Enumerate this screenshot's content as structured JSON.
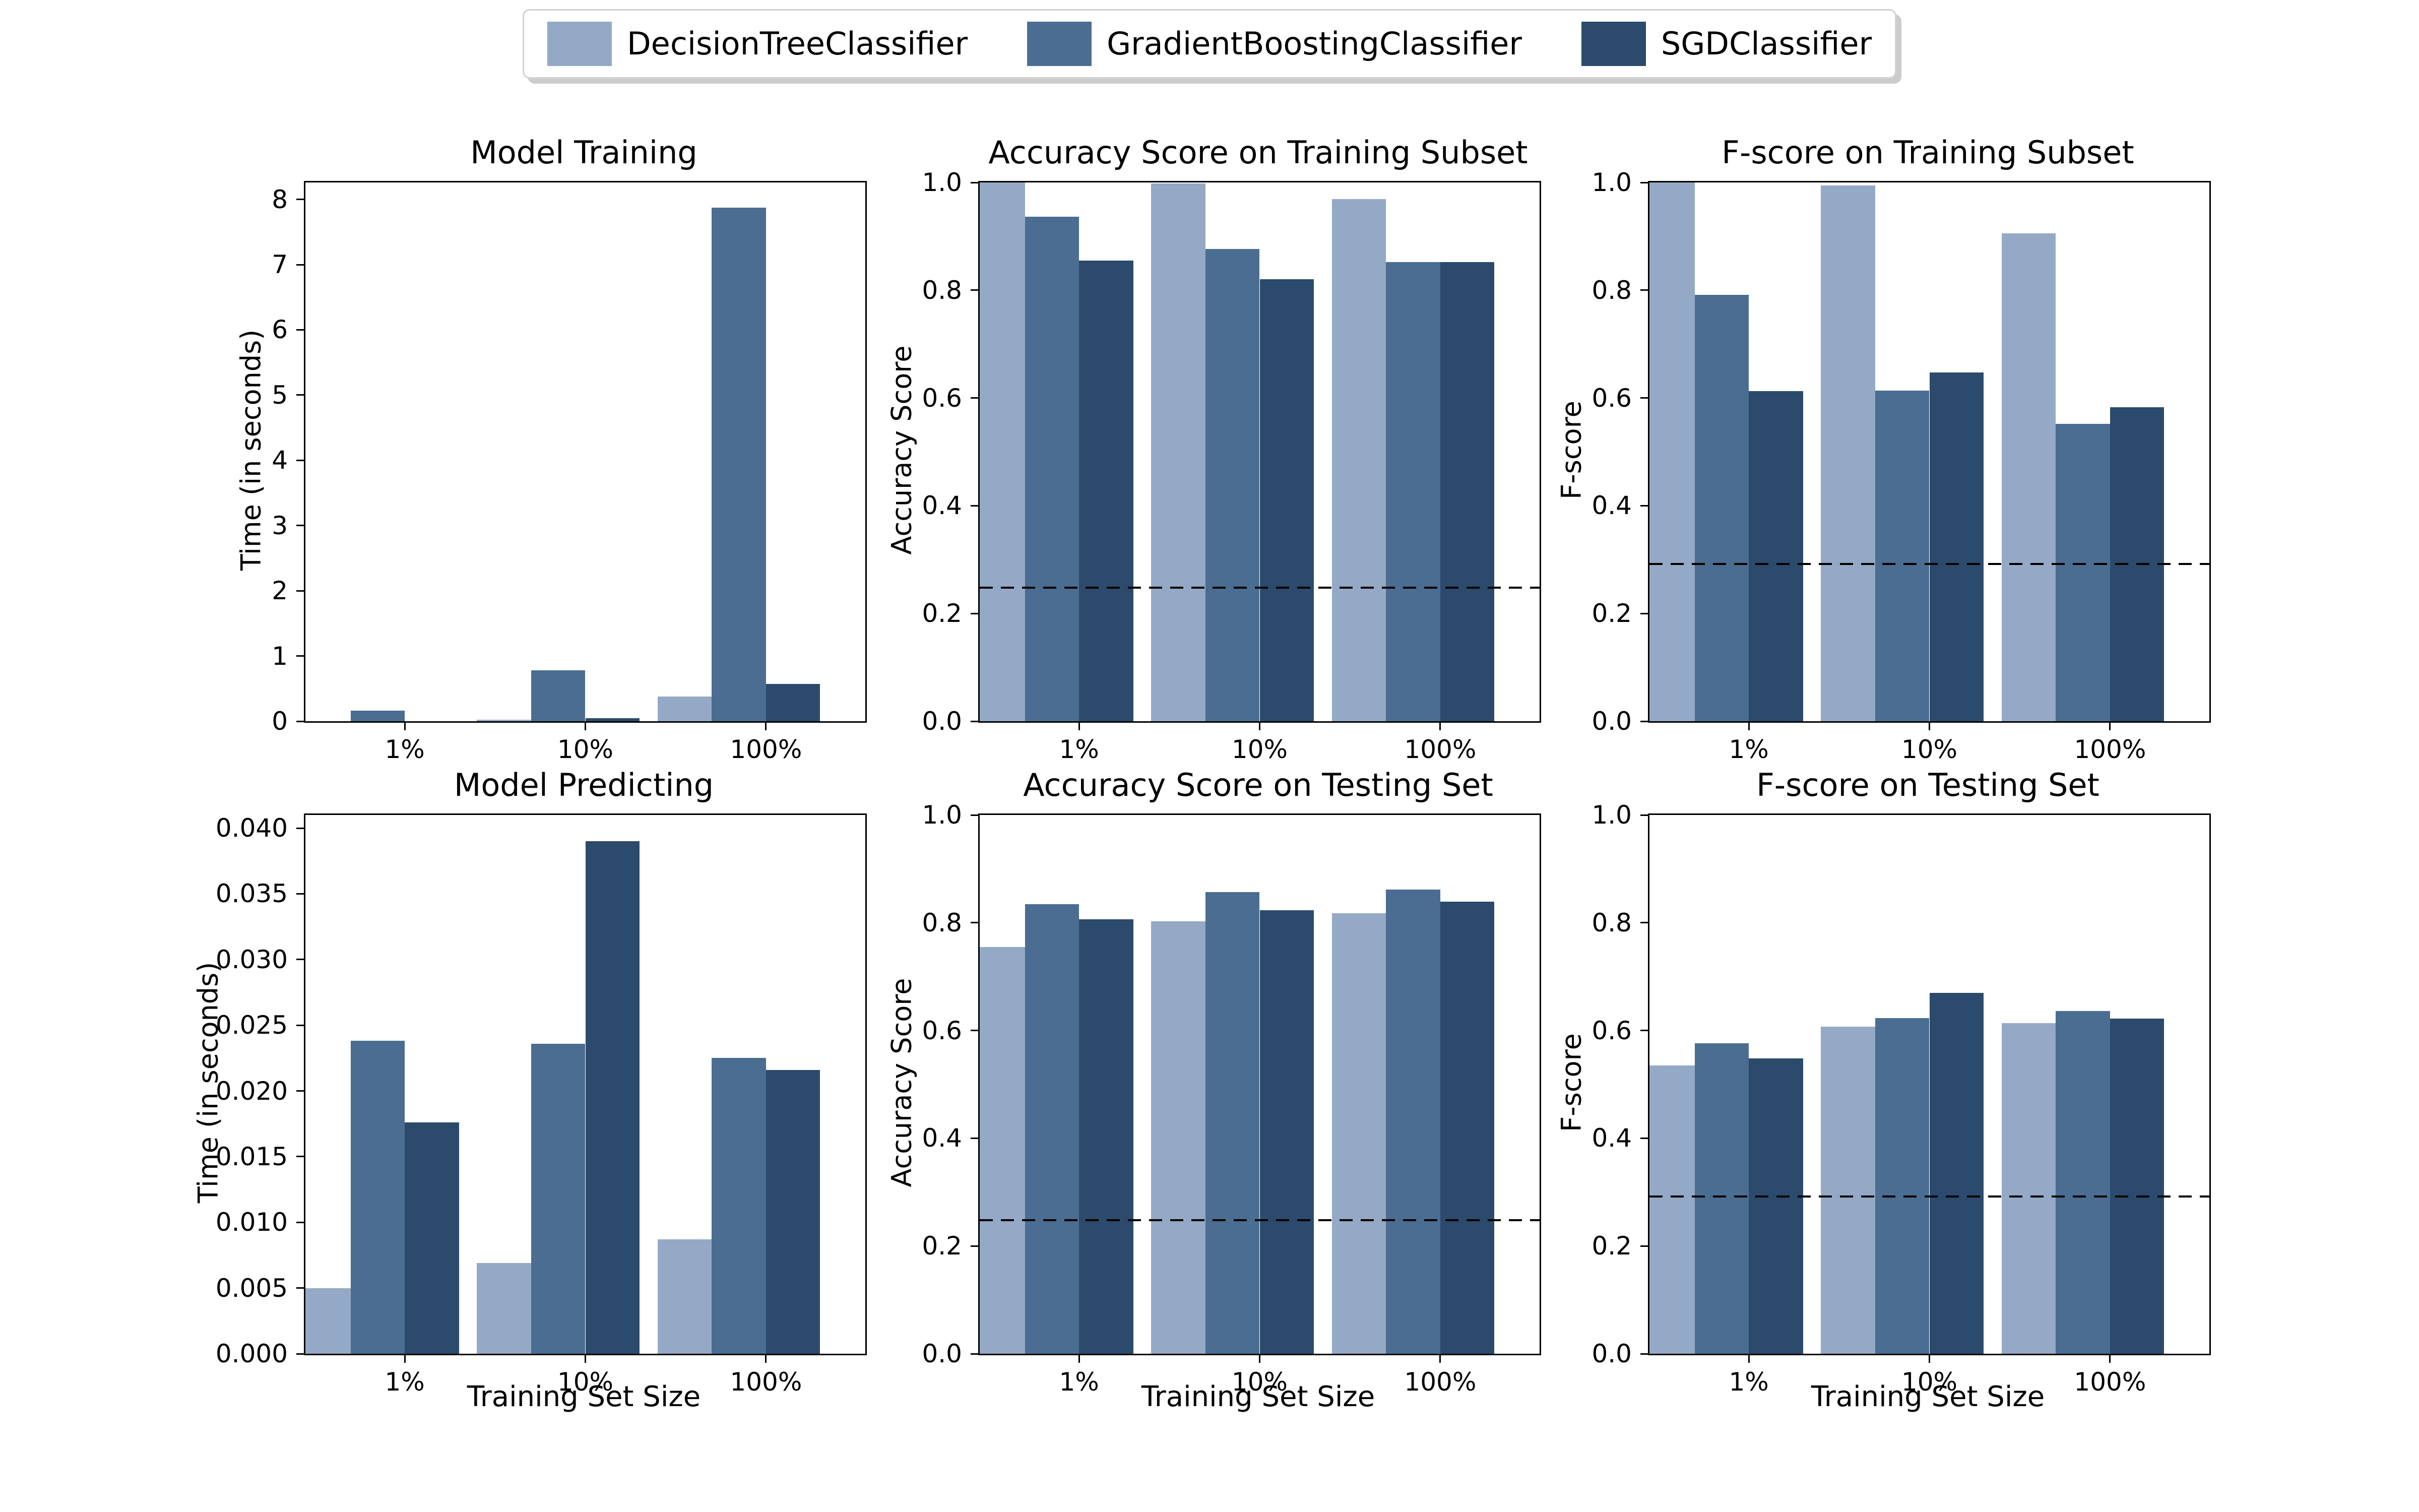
{
  "figure": {
    "background": "#ffffff",
    "text_color": "#000000",
    "axis_color": "#000000"
  },
  "legend": {
    "position": "figure-top-center",
    "items": [
      {
        "label": "DecisionTreeClassifier",
        "color": "#94a9c5"
      },
      {
        "label": "GradientBoostingClassifier",
        "color": "#4b6d91"
      },
      {
        "label": "SGDClassifier",
        "color": "#2c4b6c"
      }
    ]
  },
  "bar_layout": {
    "xlim": [
      -0.1,
      3.0
    ],
    "bar_width": 0.3,
    "group_tick_offset": 0.45
  },
  "chart_data": [
    {
      "type": "bar",
      "title": "Model Training",
      "ylabel": "Time (in seconds)",
      "xlabel": "",
      "categories": [
        "1%",
        "10%",
        "100%"
      ],
      "series": [
        {
          "name": "DecisionTreeClassifier",
          "values": [
            0.002,
            0.025,
            0.38
          ]
        },
        {
          "name": "GradientBoostingClassifier",
          "values": [
            0.16,
            0.78,
            7.87
          ]
        },
        {
          "name": "SGDClassifier",
          "values": [
            0.001,
            0.05,
            0.57
          ]
        }
      ],
      "ylim": [
        0,
        8.26
      ],
      "ytick_values": [
        0,
        1,
        2,
        3,
        4,
        5,
        6,
        7,
        8
      ],
      "ytick_labels": [
        "0",
        "1",
        "2",
        "3",
        "4",
        "5",
        "6",
        "7",
        "8"
      ],
      "baseline": null,
      "grid": false
    },
    {
      "type": "bar",
      "title": "Accuracy Score on Training Subset",
      "ylabel": "Accuracy Score",
      "xlabel": "",
      "categories": [
        "1%",
        "10%",
        "100%"
      ],
      "series": [
        {
          "name": "DecisionTreeClassifier",
          "values": [
            1.0,
            0.998,
            0.969
          ]
        },
        {
          "name": "GradientBoostingClassifier",
          "values": [
            0.936,
            0.877,
            0.852
          ]
        },
        {
          "name": "SGDClassifier",
          "values": [
            0.855,
            0.82,
            0.852
          ]
        }
      ],
      "ylim": [
        0,
        1.0
      ],
      "ytick_values": [
        0,
        0.2,
        0.4,
        0.6,
        0.8,
        1.0
      ],
      "ytick_labels": [
        "0.0",
        "0.2",
        "0.4",
        "0.6",
        "0.8",
        "1.0"
      ],
      "baseline": {
        "value": 0.2478,
        "style": "dashed",
        "color": "#000000"
      },
      "grid": false
    },
    {
      "type": "bar",
      "title": "F-score on Training Subset",
      "ylabel": "F-score",
      "xlabel": "",
      "categories": [
        "1%",
        "10%",
        "100%"
      ],
      "series": [
        {
          "name": "DecisionTreeClassifier",
          "values": [
            1.0,
            0.994,
            0.906
          ]
        },
        {
          "name": "GradientBoostingClassifier",
          "values": [
            0.791,
            0.614,
            0.552
          ]
        },
        {
          "name": "SGDClassifier",
          "values": [
            0.613,
            0.647,
            0.583
          ]
        }
      ],
      "ylim": [
        0,
        1.0
      ],
      "ytick_values": [
        0,
        0.2,
        0.4,
        0.6,
        0.8,
        1.0
      ],
      "ytick_labels": [
        "0.0",
        "0.2",
        "0.4",
        "0.6",
        "0.8",
        "1.0"
      ],
      "baseline": {
        "value": 0.2917,
        "style": "dashed",
        "color": "#000000"
      },
      "grid": false
    },
    {
      "type": "bar",
      "title": "Model Predicting",
      "ylabel": "Time (in seconds)",
      "xlabel": "Training Set Size",
      "categories": [
        "1%",
        "10%",
        "100%"
      ],
      "series": [
        {
          "name": "DecisionTreeClassifier",
          "values": [
            0.005,
            0.0069,
            0.0087
          ]
        },
        {
          "name": "GradientBoostingClassifier",
          "values": [
            0.0238,
            0.0236,
            0.0225
          ]
        },
        {
          "name": "SGDClassifier",
          "values": [
            0.0176,
            0.039,
            0.0216
          ]
        }
      ],
      "ylim": [
        0,
        0.041
      ],
      "ytick_values": [
        0,
        0.005,
        0.01,
        0.015,
        0.02,
        0.025,
        0.03,
        0.035,
        0.04
      ],
      "ytick_labels": [
        "0.000",
        "0.005",
        "0.010",
        "0.015",
        "0.020",
        "0.025",
        "0.030",
        "0.035",
        "0.040"
      ],
      "baseline": null,
      "grid": false
    },
    {
      "type": "bar",
      "title": "Accuracy Score on Testing Set",
      "ylabel": "Accuracy Score",
      "xlabel": "Training Set Size",
      "categories": [
        "1%",
        "10%",
        "100%"
      ],
      "series": [
        {
          "name": "DecisionTreeClassifier",
          "values": [
            0.755,
            0.803,
            0.818
          ]
        },
        {
          "name": "GradientBoostingClassifier",
          "values": [
            0.834,
            0.857,
            0.862
          ]
        },
        {
          "name": "SGDClassifier",
          "values": [
            0.806,
            0.823,
            0.839
          ]
        }
      ],
      "ylim": [
        0,
        1.0
      ],
      "ytick_values": [
        0,
        0.2,
        0.4,
        0.6,
        0.8,
        1.0
      ],
      "ytick_labels": [
        "0.0",
        "0.2",
        "0.4",
        "0.6",
        "0.8",
        "1.0"
      ],
      "baseline": {
        "value": 0.2478,
        "style": "dashed",
        "color": "#000000"
      },
      "grid": false
    },
    {
      "type": "bar",
      "title": "F-score on Testing Set",
      "ylabel": "F-score",
      "xlabel": "Training Set Size",
      "categories": [
        "1%",
        "10%",
        "100%"
      ],
      "series": [
        {
          "name": "DecisionTreeClassifier",
          "values": [
            0.535,
            0.607,
            0.614
          ]
        },
        {
          "name": "GradientBoostingClassifier",
          "values": [
            0.576,
            0.623,
            0.636
          ]
        },
        {
          "name": "SGDClassifier",
          "values": [
            0.548,
            0.67,
            0.622
          ]
        }
      ],
      "ylim": [
        0,
        1.0
      ],
      "ytick_values": [
        0,
        0.2,
        0.4,
        0.6,
        0.8,
        1.0
      ],
      "ytick_labels": [
        "0.0",
        "0.2",
        "0.4",
        "0.6",
        "0.8",
        "1.0"
      ],
      "baseline": {
        "value": 0.2917,
        "style": "dashed",
        "color": "#000000"
      },
      "grid": false
    }
  ]
}
